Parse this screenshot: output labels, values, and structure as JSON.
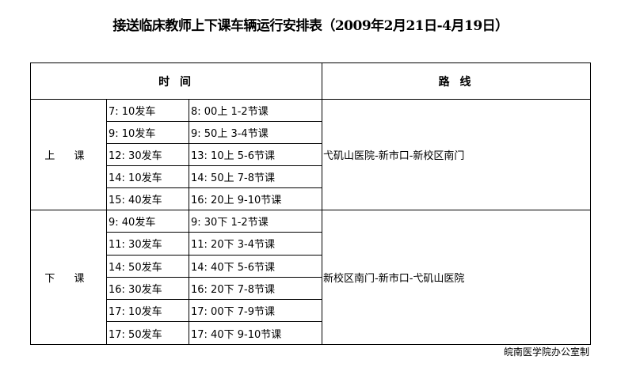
{
  "title": "接送临床教师上下课车辆运行安排表（2009年2月21日-4月19日）",
  "header": {
    "time": "时 间",
    "route": "路 线"
  },
  "sections": [
    {
      "label": "上 课",
      "route": "弋矶山医院-新市口-新校区南门",
      "rows": [
        {
          "depart": " 7: 10发车",
          "class": " 8: 00上 1-2节课"
        },
        {
          "depart": " 9: 10发车",
          "class": " 9: 50上 3-4节课"
        },
        {
          "depart": "12: 30发车",
          "class": "13: 10上 5-6节课"
        },
        {
          "depart": "14: 10发车",
          "class": "14: 50上 7-8节课"
        },
        {
          "depart": "15: 40发车",
          "class": "16: 20上 9-10节课"
        }
      ]
    },
    {
      "label": "下 课",
      "route": "新校区南门-新市口-弋矶山医院",
      "rows": [
        {
          "depart": " 9: 40发车",
          "class": " 9: 30下 1-2节课"
        },
        {
          "depart": "11: 30发车",
          "class": "11: 20下 3-4节课"
        },
        {
          "depart": "14: 50发车",
          "class": "14: 40下 5-6节课"
        },
        {
          "depart": "16: 30发车",
          "class": "16: 20下 7-8节课"
        },
        {
          "depart": "17: 10发车",
          "class": "17: 00下 7-9节课"
        },
        {
          "depart": "17: 50发车",
          "class": "17: 40下 9-10节课"
        }
      ]
    }
  ],
  "footer": "皖南医学院办公室制"
}
